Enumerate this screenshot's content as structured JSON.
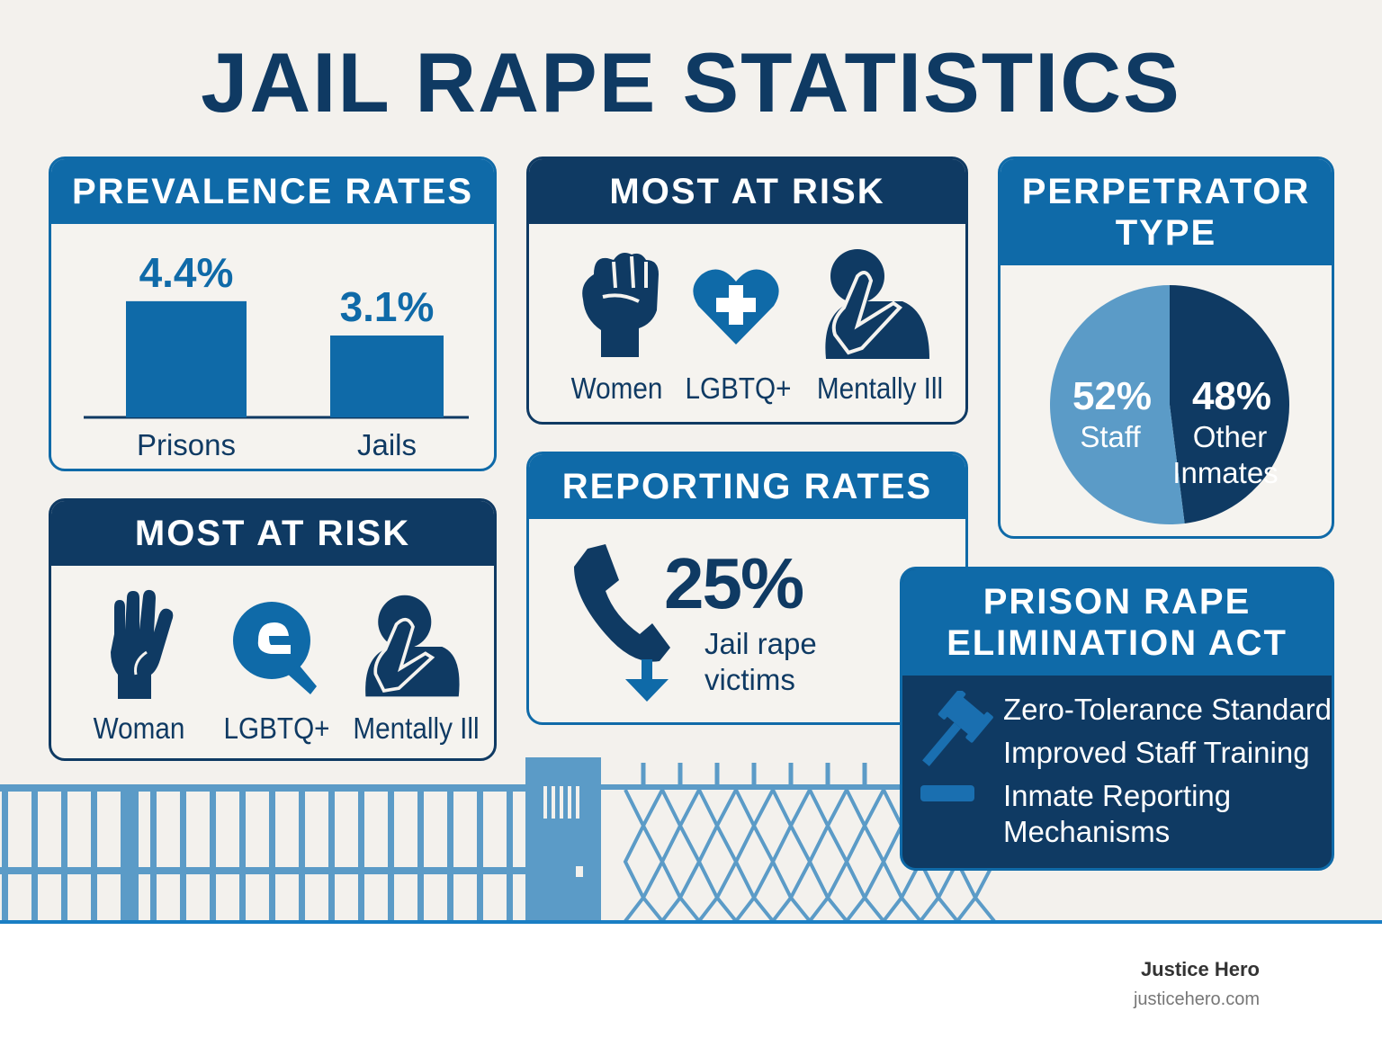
{
  "title": "JAIL RAPE STATISTICS",
  "colors": {
    "navy": "#0f3a63",
    "blue": "#0f6aa8",
    "light_blue": "#5b9bc7",
    "background": "#f3f1ed"
  },
  "prevalence": {
    "header": "PREVALENCE RATES"
  },
  "risk_top": {
    "header": "MOST AT RISK",
    "items": [
      {
        "label": "Women",
        "icon": "raised-fist-icon"
      },
      {
        "label": "LGBTQ+",
        "icon": "heart-plus-icon"
      },
      {
        "label": "Mentally Ill",
        "icon": "head-in-hand-icon"
      }
    ]
  },
  "risk_bottom": {
    "header": "MOST AT RISK",
    "items": [
      {
        "label": "Woman",
        "icon": "raised-hand-icon"
      },
      {
        "label": "LGBTQ+",
        "icon": "ribbon-badge-icon"
      },
      {
        "label": "Mentally Ill",
        "icon": "head-in-hand-icon"
      }
    ]
  },
  "perpetrator": {
    "header_line1": "PERPETRATOR",
    "header_line2": "TYPE"
  },
  "reporting": {
    "header": "REPORTING RATES",
    "value": "25%",
    "caption_line1": "Jail rape",
    "caption_line2": "victims",
    "icon": "phone-down-arrow-icon"
  },
  "prea": {
    "header_line1": "PRISON RAPE",
    "header_line2": "ELIMINATION ACT",
    "icon": "gavel-icon",
    "items": [
      "Zero-Tolerance Standard",
      "Improved Staff Training",
      "Inmate Reporting",
      "Mechanisms"
    ]
  },
  "footer": {
    "brand": "Justice Hero",
    "url": "justicehero.com"
  },
  "chart_data": [
    {
      "type": "bar",
      "title": "PREVALENCE RATES",
      "categories": [
        "Prisons",
        "Jails"
      ],
      "values": [
        4.4,
        3.1
      ],
      "data_labels": [
        "4.4%",
        "3.1%"
      ],
      "ylim": [
        0,
        4.6
      ],
      "unit": "%",
      "grid": false
    },
    {
      "type": "pie",
      "title": "PERPETRATOR TYPE",
      "slices": [
        {
          "label": "Staff",
          "value": 52,
          "display": "52%",
          "color": "#5b9bc7"
        },
        {
          "label": "Other Inmates",
          "value": 48,
          "display": "48%",
          "color": "#0f3a63"
        }
      ]
    }
  ]
}
